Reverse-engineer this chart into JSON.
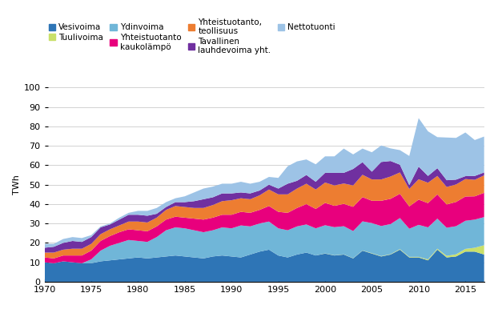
{
  "title": "",
  "ylabel": "TWh",
  "years": [
    1970,
    1971,
    1972,
    1973,
    1974,
    1975,
    1976,
    1977,
    1978,
    1979,
    1980,
    1981,
    1982,
    1983,
    1984,
    1985,
    1986,
    1987,
    1988,
    1989,
    1990,
    1991,
    1992,
    1993,
    1994,
    1995,
    1996,
    1997,
    1998,
    1999,
    2000,
    2001,
    2002,
    2003,
    2004,
    2005,
    2006,
    2007,
    2008,
    2009,
    2010,
    2011,
    2012,
    2013,
    2014,
    2015,
    2016,
    2017
  ],
  "series": {
    "Vesivoima": [
      10.0,
      9.5,
      10.5,
      10.0,
      9.5,
      9.5,
      10.5,
      11.0,
      11.5,
      12.0,
      12.5,
      12.0,
      12.5,
      13.0,
      13.5,
      13.0,
      12.5,
      12.0,
      13.0,
      13.5,
      13.0,
      12.5,
      14.0,
      15.5,
      16.5,
      13.5,
      12.5,
      14.0,
      15.0,
      13.5,
      14.5,
      13.5,
      14.0,
      12.0,
      16.0,
      14.5,
      13.0,
      14.0,
      16.5,
      12.5,
      12.5,
      11.0,
      16.5,
      12.5,
      13.0,
      15.5,
      15.5,
      14.0
    ],
    "Tuulivoima": [
      0.0,
      0.0,
      0.0,
      0.0,
      0.0,
      0.0,
      0.0,
      0.0,
      0.0,
      0.0,
      0.0,
      0.0,
      0.0,
      0.0,
      0.0,
      0.0,
      0.0,
      0.0,
      0.0,
      0.0,
      0.0,
      0.0,
      0.0,
      0.0,
      0.0,
      0.0,
      0.0,
      0.0,
      0.0,
      0.0,
      0.1,
      0.1,
      0.1,
      0.1,
      0.1,
      0.2,
      0.2,
      0.2,
      0.3,
      0.3,
      0.3,
      0.5,
      0.5,
      0.8,
      1.1,
      1.4,
      2.0,
      4.8
    ],
    "Ydinvoima": [
      0.0,
      0.0,
      0.0,
      0.0,
      0.0,
      2.0,
      5.5,
      7.5,
      8.5,
      9.5,
      8.5,
      8.5,
      10.5,
      13.5,
      14.5,
      14.5,
      14.0,
      13.5,
      13.5,
      14.5,
      14.5,
      16.5,
      14.5,
      14.5,
      14.5,
      14.0,
      14.0,
      14.5,
      14.5,
      14.0,
      14.5,
      14.5,
      14.5,
      14.0,
      15.0,
      15.5,
      15.5,
      15.5,
      16.0,
      14.5,
      16.5,
      16.5,
      15.5,
      14.5,
      14.5,
      14.5,
      14.5,
      14.5
    ],
    "Yhteistuotanto_kaukolampo": [
      2.5,
      2.5,
      3.0,
      3.5,
      4.0,
      4.5,
      5.0,
      5.0,
      5.5,
      5.5,
      5.5,
      5.5,
      5.5,
      5.5,
      5.5,
      5.5,
      6.0,
      6.5,
      6.5,
      6.5,
      7.0,
      7.0,
      7.0,
      7.0,
      8.0,
      8.5,
      9.0,
      9.5,
      10.5,
      10.0,
      11.5,
      11.0,
      11.5,
      12.5,
      12.5,
      11.5,
      13.0,
      13.0,
      12.5,
      11.5,
      13.0,
      12.5,
      12.5,
      12.0,
      12.5,
      12.5,
      12.0,
      12.5
    ],
    "Yhteistuotanto_teollisuus": [
      2.5,
      3.0,
      3.0,
      3.5,
      3.5,
      3.5,
      3.5,
      3.5,
      3.5,
      4.0,
      4.5,
      4.5,
      4.5,
      5.0,
      5.5,
      5.5,
      5.5,
      6.0,
      6.5,
      7.0,
      7.5,
      7.0,
      7.0,
      7.5,
      8.5,
      9.0,
      9.5,
      10.0,
      10.5,
      10.0,
      10.5,
      10.5,
      10.5,
      11.0,
      11.5,
      11.0,
      11.0,
      11.5,
      11.0,
      9.0,
      10.5,
      10.5,
      9.5,
      9.0,
      9.0,
      9.0,
      8.5,
      9.0
    ],
    "Tavallinen_lauhdevoima": [
      2.5,
      3.0,
      3.5,
      4.0,
      3.5,
      3.5,
      3.5,
      2.5,
      3.0,
      3.5,
      3.5,
      3.5,
      2.0,
      1.5,
      2.0,
      2.5,
      3.5,
      4.5,
      4.0,
      4.0,
      3.5,
      3.0,
      3.0,
      2.5,
      2.5,
      3.0,
      5.5,
      4.0,
      4.5,
      4.0,
      5.0,
      6.5,
      5.5,
      8.5,
      6.5,
      4.0,
      9.0,
      8.0,
      4.0,
      2.0,
      6.5,
      3.5,
      4.0,
      3.5,
      2.5,
      1.5,
      2.0,
      1.5
    ],
    "Nettotuonti": [
      2.0,
      1.5,
      2.0,
      2.0,
      2.0,
      1.0,
      0.5,
      0.5,
      1.0,
      1.0,
      2.0,
      2.5,
      3.0,
      2.5,
      2.0,
      3.0,
      4.5,
      5.5,
      5.5,
      5.0,
      5.0,
      5.5,
      5.0,
      4.5,
      4.0,
      5.5,
      9.0,
      10.0,
      8.0,
      9.0,
      8.5,
      8.5,
      12.5,
      7.5,
      7.0,
      10.0,
      8.5,
      6.5,
      7.5,
      15.0,
      25.0,
      23.0,
      16.0,
      22.0,
      21.5,
      22.5,
      18.5,
      18.5
    ]
  },
  "colors": {
    "Vesivoima": "#2E75B6",
    "Tuulivoima": "#C9E06A",
    "Ydinvoima": "#70B6D8",
    "Yhteistuotanto_kaukolampo": "#E8007D",
    "Yhteistuotanto_teollisuus": "#ED7D31",
    "Tavallinen_lauhdevoima": "#7030A0",
    "Nettotuonti": "#9DC3E6"
  },
  "legend_labels": {
    "Vesivoima": "Vesivoima",
    "Tuulivoima": "Tuulivoima",
    "Ydinvoima": "Ydinvoima",
    "Yhteistuotanto_kaukolampo": "Yhteistuotanto\nkaukolämpö",
    "Yhteistuotanto_teollisuus": "Yhteistuotanto,\nteollisuus",
    "Tavallinen_lauhdevoima": "Tavallinen\nlauhdevoima yht.",
    "Nettotuonti": "Nettotuonti"
  },
  "ylim": [
    0,
    100
  ],
  "yticks": [
    0,
    10,
    20,
    30,
    40,
    50,
    60,
    70,
    80,
    90,
    100
  ],
  "xticks": [
    1970,
    1975,
    1980,
    1985,
    1990,
    1995,
    2000,
    2005,
    2010,
    2015
  ],
  "figsize": [
    6.17,
    3.91
  ],
  "dpi": 100
}
